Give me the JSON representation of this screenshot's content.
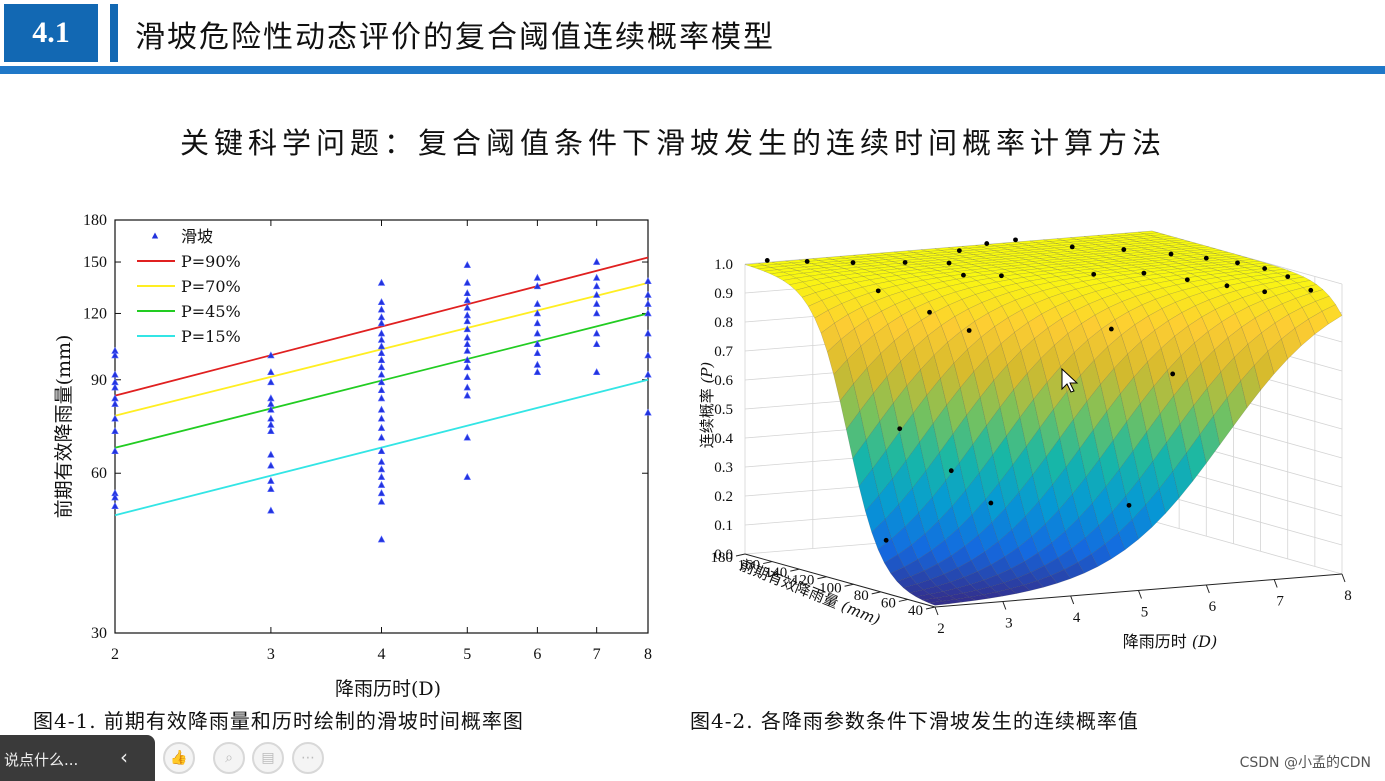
{
  "header": {
    "section_number": "4.1",
    "title": "滑坡危险性动态评价的复合阈值连续概率模型"
  },
  "key_question": "关键科学问题：复合阈值条件下滑坡发生的连续时间概率计算方法",
  "colors": {
    "header_blue": "#1268b3",
    "bar_blue": "#1f78c8"
  },
  "chart_data": [
    {
      "type": "scatter",
      "xlabel": "降雨历时(D)",
      "ylabel": "前期有效降雨量(mm)",
      "x_scale": "log",
      "y_scale": "log",
      "xlim": [
        2,
        8
      ],
      "ylim": [
        30,
        180
      ],
      "x_ticks": [
        2,
        3,
        4,
        5,
        6,
        7,
        8
      ],
      "y_ticks": [
        30,
        60,
        90,
        120,
        150,
        180
      ],
      "legend_position": "top-left",
      "scatter_name": "滑坡",
      "points": [
        {
          "x": 2,
          "y": 102
        },
        {
          "x": 2,
          "y": 100
        },
        {
          "x": 2,
          "y": 92
        },
        {
          "x": 2,
          "y": 89
        },
        {
          "x": 2,
          "y": 87
        },
        {
          "x": 2,
          "y": 83
        },
        {
          "x": 2,
          "y": 81
        },
        {
          "x": 2,
          "y": 76
        },
        {
          "x": 2,
          "y": 72
        },
        {
          "x": 2,
          "y": 66
        },
        {
          "x": 2,
          "y": 55
        },
        {
          "x": 2,
          "y": 54
        },
        {
          "x": 2,
          "y": 52
        },
        {
          "x": 3,
          "y": 100
        },
        {
          "x": 3,
          "y": 93
        },
        {
          "x": 3,
          "y": 89
        },
        {
          "x": 3,
          "y": 83
        },
        {
          "x": 3,
          "y": 81
        },
        {
          "x": 3,
          "y": 79
        },
        {
          "x": 3,
          "y": 76
        },
        {
          "x": 3,
          "y": 74
        },
        {
          "x": 3,
          "y": 72
        },
        {
          "x": 3,
          "y": 65
        },
        {
          "x": 3,
          "y": 62
        },
        {
          "x": 3,
          "y": 58
        },
        {
          "x": 3,
          "y": 56
        },
        {
          "x": 3,
          "y": 51
        },
        {
          "x": 4,
          "y": 137
        },
        {
          "x": 4,
          "y": 126
        },
        {
          "x": 4,
          "y": 122
        },
        {
          "x": 4,
          "y": 118
        },
        {
          "x": 4,
          "y": 115
        },
        {
          "x": 4,
          "y": 110
        },
        {
          "x": 4,
          "y": 107
        },
        {
          "x": 4,
          "y": 104
        },
        {
          "x": 4,
          "y": 101
        },
        {
          "x": 4,
          "y": 98
        },
        {
          "x": 4,
          "y": 95
        },
        {
          "x": 4,
          "y": 92
        },
        {
          "x": 4,
          "y": 89
        },
        {
          "x": 4,
          "y": 86
        },
        {
          "x": 4,
          "y": 83
        },
        {
          "x": 4,
          "y": 79
        },
        {
          "x": 4,
          "y": 76
        },
        {
          "x": 4,
          "y": 73
        },
        {
          "x": 4,
          "y": 70
        },
        {
          "x": 4,
          "y": 66
        },
        {
          "x": 4,
          "y": 63
        },
        {
          "x": 4,
          "y": 61
        },
        {
          "x": 4,
          "y": 59
        },
        {
          "x": 4,
          "y": 57
        },
        {
          "x": 4,
          "y": 55
        },
        {
          "x": 4,
          "y": 53
        },
        {
          "x": 4,
          "y": 45
        },
        {
          "x": 5,
          "y": 148
        },
        {
          "x": 5,
          "y": 137
        },
        {
          "x": 5,
          "y": 131
        },
        {
          "x": 5,
          "y": 127
        },
        {
          "x": 5,
          "y": 123
        },
        {
          "x": 5,
          "y": 119
        },
        {
          "x": 5,
          "y": 116
        },
        {
          "x": 5,
          "y": 112
        },
        {
          "x": 5,
          "y": 108
        },
        {
          "x": 5,
          "y": 105
        },
        {
          "x": 5,
          "y": 102
        },
        {
          "x": 5,
          "y": 98
        },
        {
          "x": 5,
          "y": 95
        },
        {
          "x": 5,
          "y": 91
        },
        {
          "x": 5,
          "y": 87
        },
        {
          "x": 5,
          "y": 84
        },
        {
          "x": 5,
          "y": 70
        },
        {
          "x": 5,
          "y": 59
        },
        {
          "x": 6,
          "y": 140
        },
        {
          "x": 6,
          "y": 135
        },
        {
          "x": 6,
          "y": 125
        },
        {
          "x": 6,
          "y": 120
        },
        {
          "x": 6,
          "y": 115
        },
        {
          "x": 6,
          "y": 110
        },
        {
          "x": 6,
          "y": 105
        },
        {
          "x": 6,
          "y": 101
        },
        {
          "x": 6,
          "y": 96
        },
        {
          "x": 6,
          "y": 93
        },
        {
          "x": 7,
          "y": 150
        },
        {
          "x": 7,
          "y": 140
        },
        {
          "x": 7,
          "y": 135
        },
        {
          "x": 7,
          "y": 130
        },
        {
          "x": 7,
          "y": 125
        },
        {
          "x": 7,
          "y": 120
        },
        {
          "x": 7,
          "y": 110
        },
        {
          "x": 7,
          "y": 105
        },
        {
          "x": 7,
          "y": 93
        },
        {
          "x": 8,
          "y": 138
        },
        {
          "x": 8,
          "y": 130
        },
        {
          "x": 8,
          "y": 125
        },
        {
          "x": 8,
          "y": 120
        },
        {
          "x": 8,
          "y": 110
        },
        {
          "x": 8,
          "y": 100
        },
        {
          "x": 8,
          "y": 92
        },
        {
          "x": 8,
          "y": 78
        }
      ],
      "series": [
        {
          "name": "P=90%",
          "color": "#e02020",
          "x": [
            2,
            8
          ],
          "y": [
            84,
            153
          ]
        },
        {
          "name": "P=70%",
          "color": "#ffee22",
          "x": [
            2,
            8
          ],
          "y": [
            77,
            137
          ]
        },
        {
          "name": "P=45%",
          "color": "#22cc22",
          "x": [
            2,
            8
          ],
          "y": [
            67,
            120
          ]
        },
        {
          "name": "P=15%",
          "color": "#33e5e5",
          "x": [
            2,
            8
          ],
          "y": [
            50,
            90
          ]
        }
      ]
    },
    {
      "type": "surface",
      "xlabel": "降雨历时",
      "xlabel_unit": "(D)",
      "ylabel": "前期有效降雨量",
      "ylabel_unit": "(mm)",
      "zlabel": "连续概率",
      "zlabel_unit": "(P)",
      "x_ticks": [
        2,
        3,
        4,
        5,
        6,
        7,
        8
      ],
      "y_ticks": [
        40,
        60,
        80,
        100,
        120,
        140,
        160,
        180
      ],
      "z_ticks": [
        "0.0",
        "0.1",
        "0.2",
        "0.3",
        "0.4",
        "0.5",
        "0.6",
        "0.7",
        "0.8",
        "0.9",
        "1.0"
      ],
      "zlim": [
        0,
        1
      ],
      "colormap": "parula"
    }
  ],
  "captions": {
    "fig1": "图4-1. 前期有效降雨量和历时绘制的滑坡时间概率图",
    "fig2": "图4-2. 各降雨参数条件下滑坡发生的连续概率值"
  },
  "toolbar": {
    "comment_placeholder": "说点什么...",
    "collapse_icon": "chevron-left-icon"
  },
  "watermark": "CSDN @小孟的CDN"
}
